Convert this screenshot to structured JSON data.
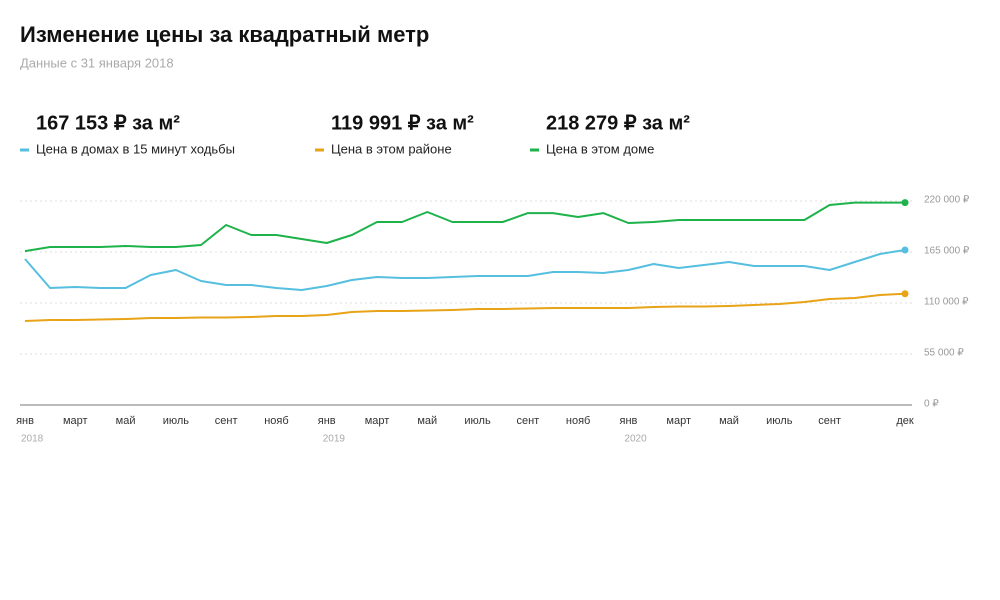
{
  "chart_data": {
    "type": "line",
    "title": "Изменение цены за квадратный метр",
    "subtitle": "Данные с 31 января 2018",
    "categories": [
      "янв",
      null,
      "март",
      null,
      "май",
      null,
      "июль",
      null,
      "сент",
      null,
      "нояб",
      null,
      "янв",
      null,
      "март",
      null,
      "май",
      null,
      "июль",
      null,
      "сент",
      null,
      "нояб",
      null,
      "янв",
      null,
      "март",
      null,
      "май",
      null,
      "июль",
      null,
      "сент",
      null,
      null,
      "дек"
    ],
    "years": [
      "2018",
      "2019",
      "2020"
    ],
    "ylim": [
      0,
      220000
    ],
    "yticks": [
      {
        "value": 0,
        "label": "0 ₽"
      },
      {
        "value": 55000,
        "label": "55 000 ₽"
      },
      {
        "value": 110000,
        "label": "110 000 ₽"
      },
      {
        "value": 165000,
        "label": "165 000 ₽"
      },
      {
        "value": 220000,
        "label": "220 000 ₽"
      }
    ],
    "grid": true,
    "series": [
      {
        "name": "Цена в домах в 15 минут ходьбы",
        "headline": "167 153 ₽ за м²",
        "color": "#56bfe0",
        "values": [
          157400,
          126200,
          127300,
          126200,
          126200,
          140200,
          145600,
          133700,
          129400,
          129400,
          126200,
          124000,
          128300,
          134800,
          138000,
          137000,
          137000,
          138000,
          139100,
          139100,
          139100,
          143400,
          143400,
          142300,
          145600,
          152100,
          147700,
          151000,
          154200,
          149900,
          149900,
          149900,
          145600,
          154200,
          162800,
          167153
        ]
      },
      {
        "name": "Цена в этом районе",
        "headline": "119 991 ₽ за м²",
        "color": "#e8a317",
        "values": [
          90600,
          91700,
          91700,
          92200,
          92700,
          93800,
          93800,
          94400,
          94400,
          94900,
          96000,
          96000,
          97100,
          100300,
          101400,
          101400,
          101900,
          102400,
          103500,
          103500,
          104100,
          104600,
          104600,
          104600,
          104600,
          105700,
          106200,
          106200,
          106800,
          107800,
          108900,
          111100,
          114300,
          115400,
          118600,
          119991
        ]
      },
      {
        "name": "Цена в этом доме",
        "headline": "218 279 ₽ за м²",
        "color": "#1db34a",
        "values": [
          166000,
          170400,
          170400,
          170400,
          171500,
          170400,
          170400,
          172500,
          194100,
          183300,
          183300,
          179000,
          174700,
          183300,
          197300,
          197300,
          208100,
          197300,
          197300,
          197300,
          207000,
          207000,
          202700,
          207000,
          196300,
          197300,
          199500,
          199500,
          199500,
          199500,
          199500,
          199500,
          215700,
          218279,
          218279,
          218279
        ]
      }
    ]
  }
}
